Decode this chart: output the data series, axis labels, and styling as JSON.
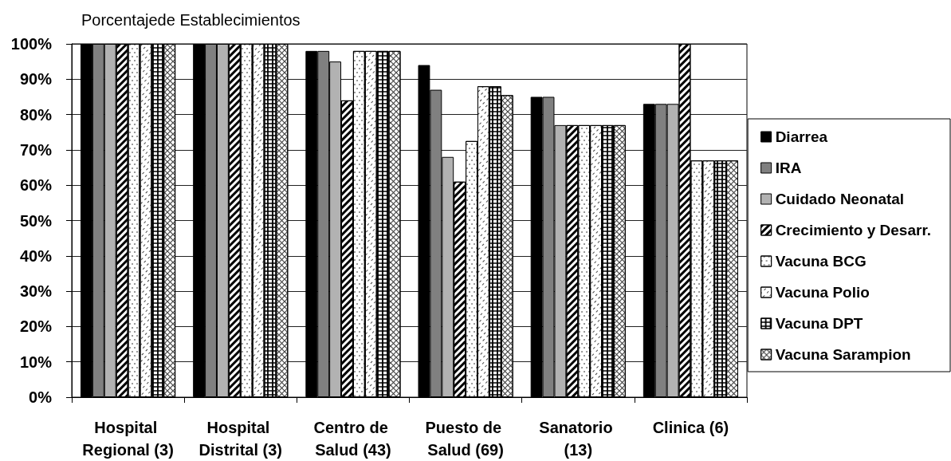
{
  "chart_data": {
    "type": "bar",
    "ylabel": "Porcentajede Establecimientos",
    "categories": [
      "Hospital Regional (3)",
      "Hospital Distrital (3)",
      "Centro de Salud (43)",
      "Puesto de Salud (69)",
      "Sanatorio (13)",
      "Clinica (6)"
    ],
    "series": [
      {
        "name": "Diarrea",
        "color": "#000000",
        "values": [
          100,
          100,
          98,
          94,
          85,
          83
        ]
      },
      {
        "name": "IRA",
        "color": "#808080",
        "values": [
          100,
          100,
          98,
          87,
          85,
          83
        ]
      },
      {
        "name": "Cuidado Neonatal",
        "color": "#b2b2b2",
        "values": [
          100,
          100,
          95,
          68,
          77,
          83
        ]
      },
      {
        "name": "Crecimiento y Desarr.",
        "color": "#ffffff",
        "values": [
          100,
          100,
          84,
          61,
          77,
          100
        ]
      },
      {
        "name": "Vacuna BCG",
        "color": "#ffffff",
        "values": [
          100,
          100,
          98,
          72.5,
          77,
          67
        ]
      },
      {
        "name": "Vacuna Polio",
        "color": "#ffffff",
        "values": [
          100,
          100,
          98,
          88,
          77,
          67
        ]
      },
      {
        "name": "Vacuna DPT",
        "color": "#ffffff",
        "values": [
          100,
          100,
          98,
          88,
          77,
          67
        ]
      },
      {
        "name": "Vacuna Sarampion",
        "color": "#ffffff",
        "values": [
          100,
          100,
          98,
          85.5,
          77,
          67
        ]
      }
    ],
    "ylim": [
      0,
      100
    ],
    "yticks": [
      {
        "value": 0,
        "label": "0%"
      },
      {
        "value": 10,
        "label": "10%"
      },
      {
        "value": 20,
        "label": "20%"
      },
      {
        "value": 30,
        "label": "30%"
      },
      {
        "value": 40,
        "label": "40%"
      },
      {
        "value": 50,
        "label": "50%"
      },
      {
        "value": 60,
        "label": "60%"
      },
      {
        "value": 70,
        "label": "70%"
      },
      {
        "value": 80,
        "label": "80%"
      },
      {
        "value": 90,
        "label": "90%"
      },
      {
        "value": 100,
        "label": "100%"
      }
    ],
    "grid": "y",
    "legend": "right"
  }
}
